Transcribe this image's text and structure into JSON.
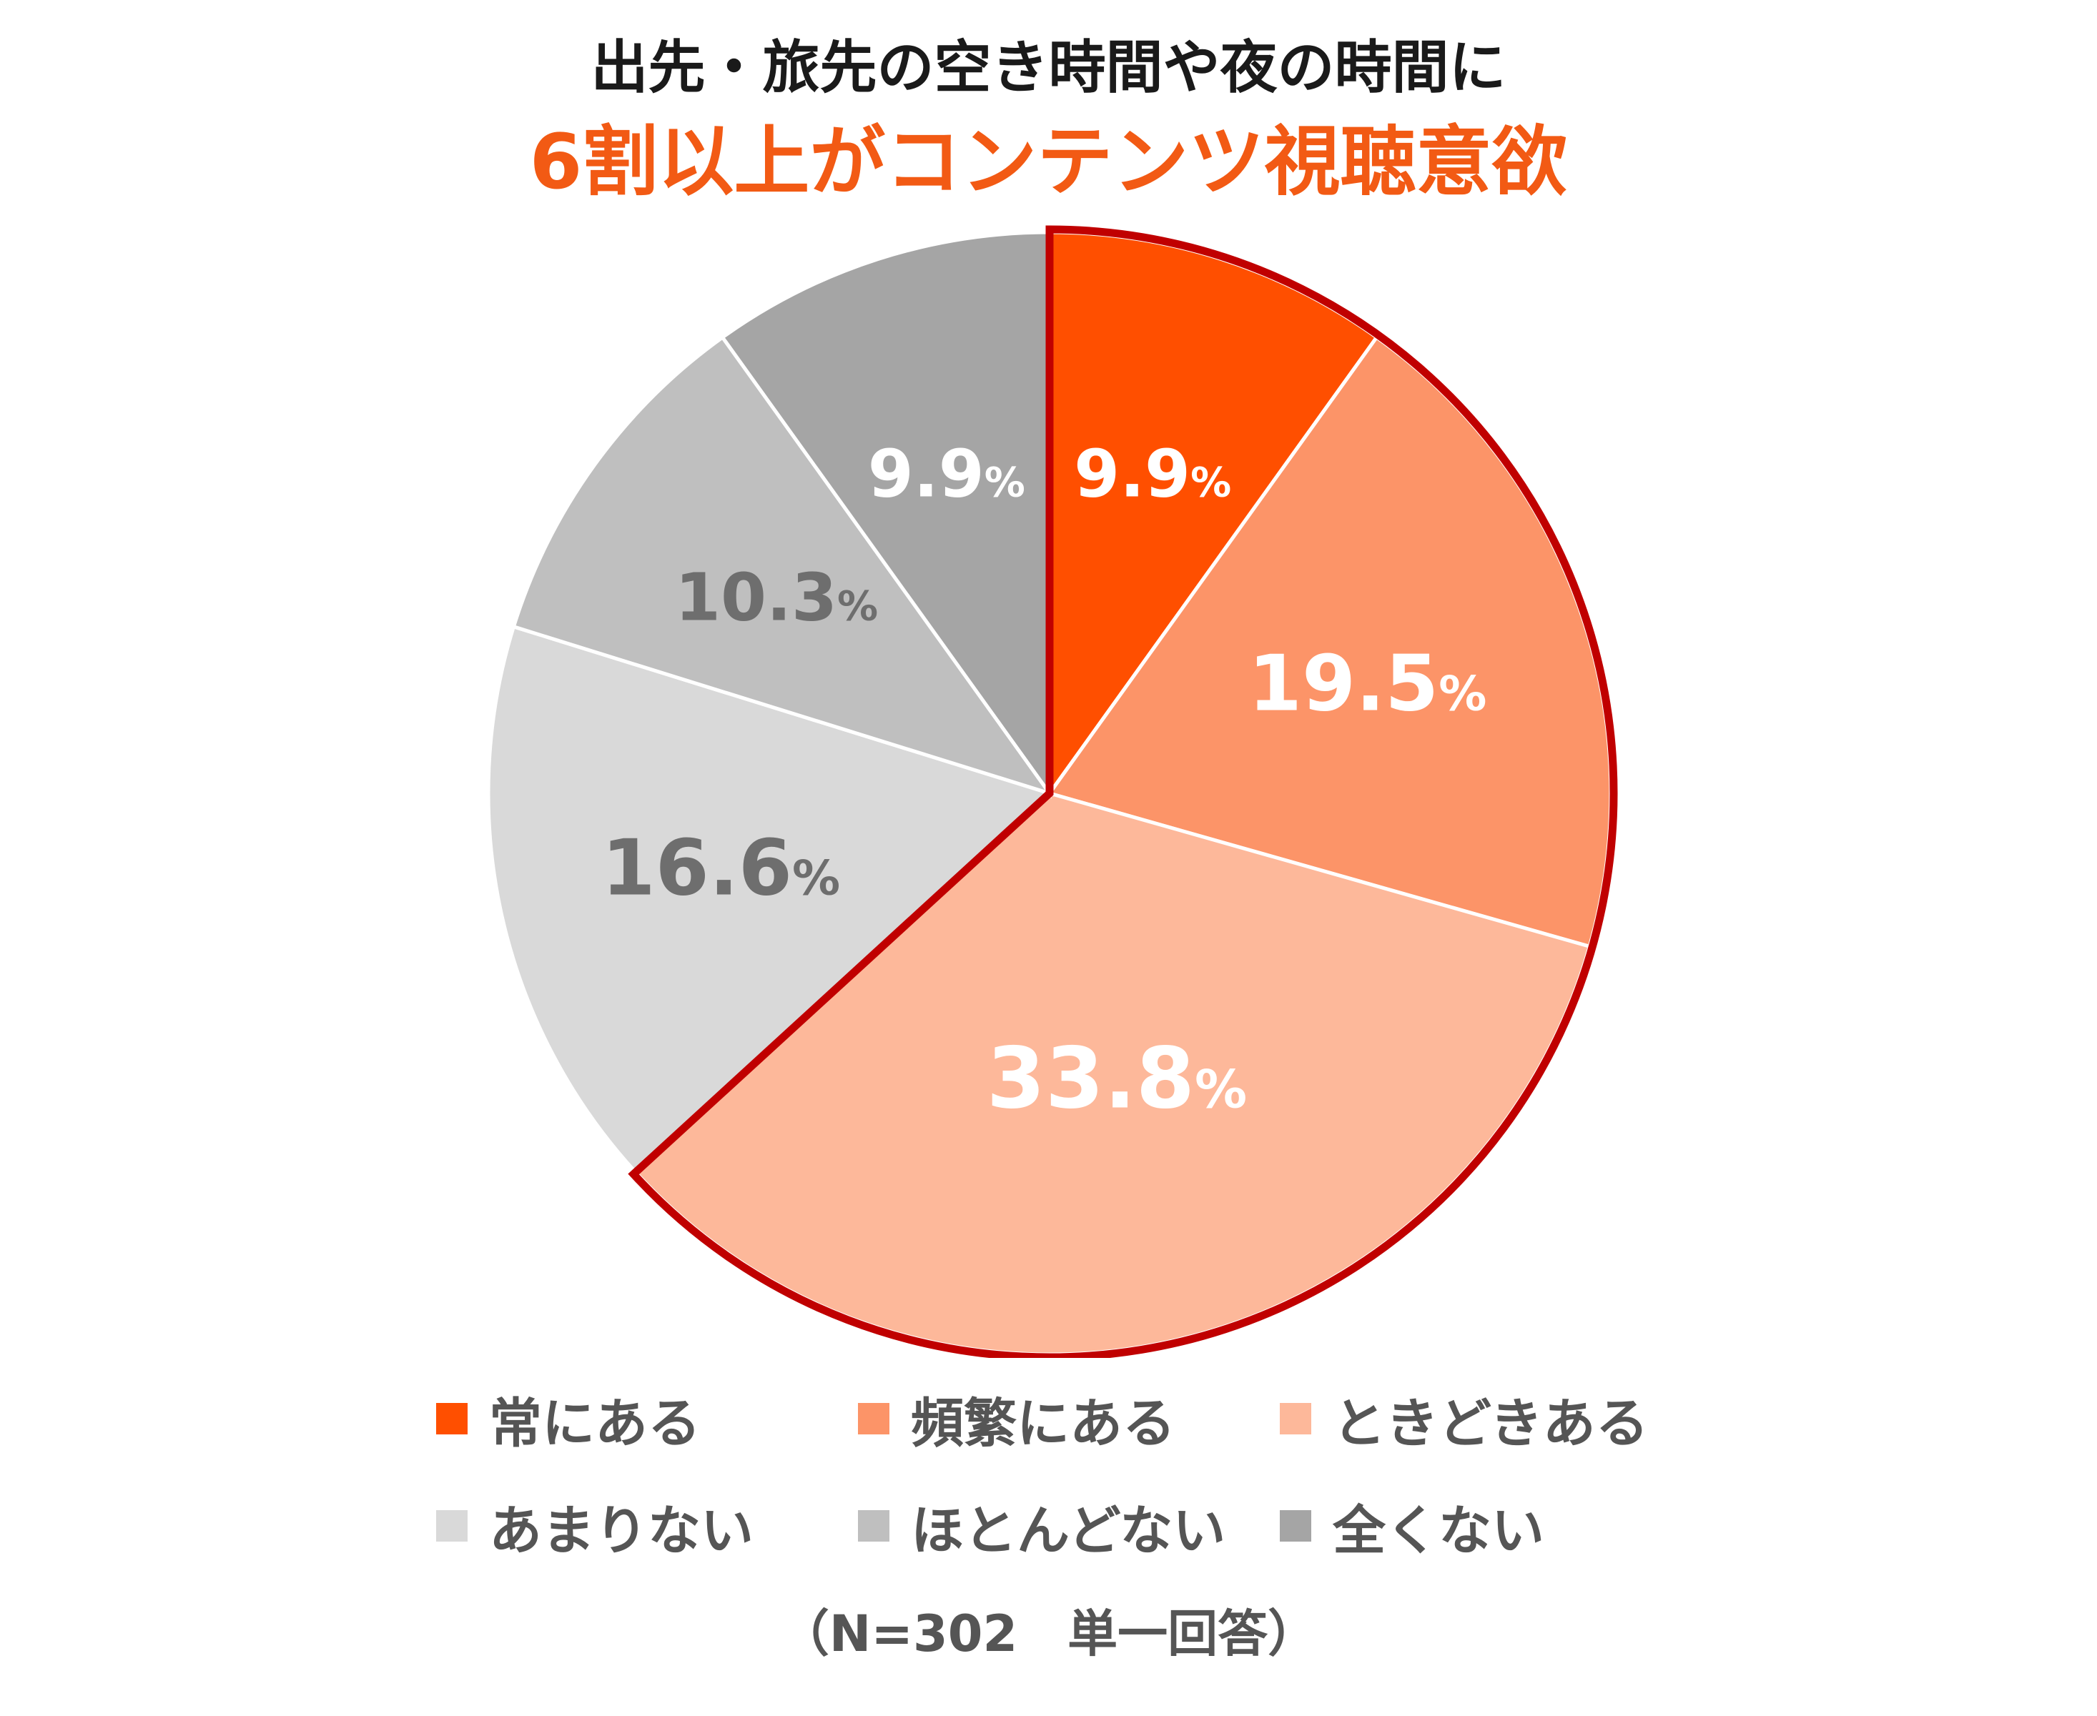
{
  "title": {
    "line1": "出先・旅先の空き時間や夜の時間に",
    "line2": "6割以上がコンテンツ視聴意欲",
    "line2_color": "#f25a14"
  },
  "note": "（N=302　単一回答）",
  "highlight_color": "#c00000",
  "chart_data": {
    "type": "pie",
    "title": "",
    "start_angle_deg": 0,
    "direction": "clockwise",
    "slices": [
      {
        "label": "常にある",
        "value": 9.9,
        "display": "9.9",
        "color": "#ff4f00",
        "text_color": "#ffffff"
      },
      {
        "label": "頻繁にある",
        "value": 19.5,
        "display": "19.5",
        "color": "#fc9468",
        "text_color": "#ffffff"
      },
      {
        "label": "ときどきある",
        "value": 33.8,
        "display": "33.8",
        "color": "#fdb89a",
        "text_color": "#ffffff"
      },
      {
        "label": "あまりない",
        "value": 16.6,
        "display": "16.6",
        "color": "#d9d9d9",
        "text_color": "#6e6e6e"
      },
      {
        "label": "ほとんどない",
        "value": 10.3,
        "display": "10.3",
        "color": "#bfbfbf",
        "text_color": "#6e6e6e"
      },
      {
        "label": "全くない",
        "value": 9.9,
        "display": "9.9",
        "color": "#a5a5a5",
        "text_color": "#ffffff"
      }
    ],
    "unit": "%",
    "highlighted_slices": [
      "常にある",
      "頻繁にある",
      "ときどきある"
    ],
    "legend_position": "bottom"
  }
}
